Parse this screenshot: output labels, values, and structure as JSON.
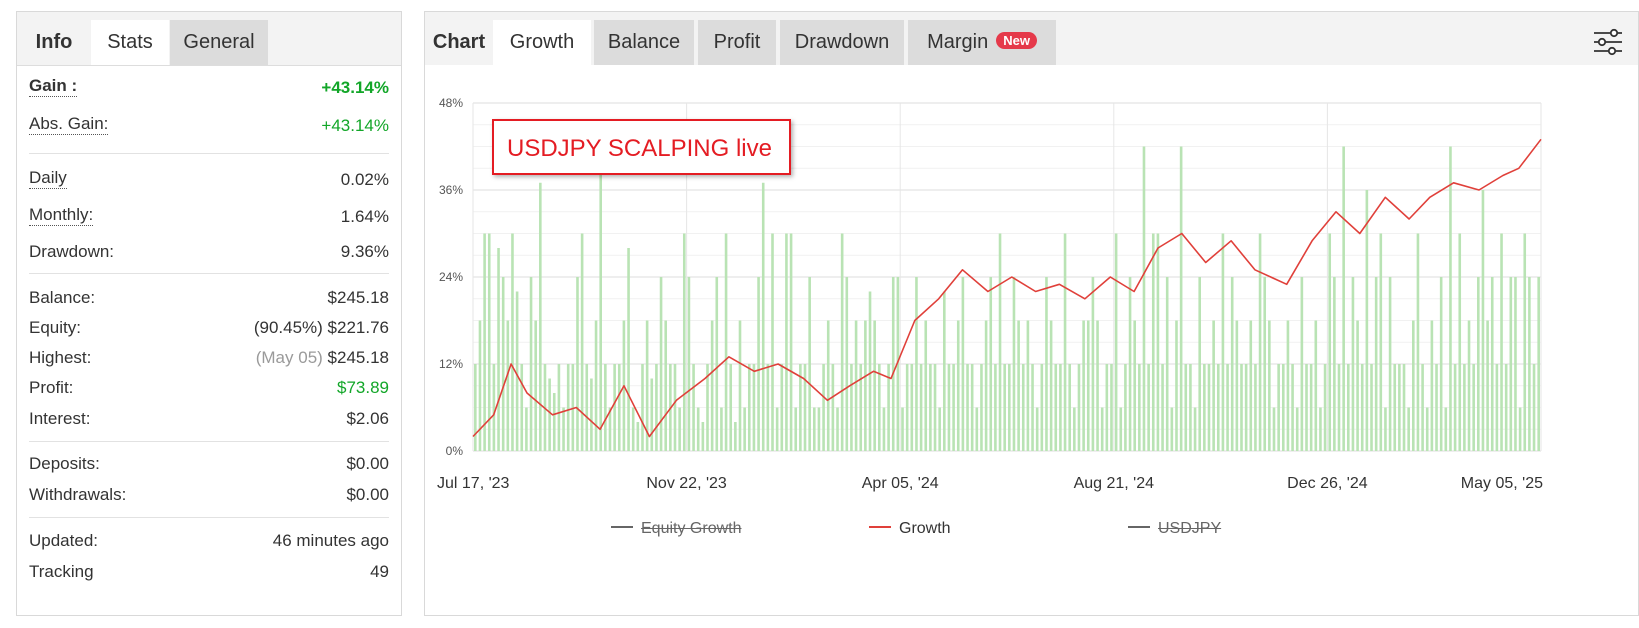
{
  "stats_panel": {
    "tabs": [
      {
        "label": "Info"
      },
      {
        "label": "Stats"
      },
      {
        "label": "General"
      }
    ],
    "rows": [
      {
        "label": "Gain :",
        "value": "+43.14%"
      },
      {
        "label": "Abs. Gain:",
        "value": "+43.14%"
      },
      {
        "label": "Daily",
        "value": "0.02%"
      },
      {
        "label": "Monthly:",
        "value": "1.64%"
      },
      {
        "label": "Drawdown:",
        "value": "9.36%"
      },
      {
        "label": "Balance:",
        "value": "$245.18"
      },
      {
        "label": "Equity:",
        "prefix": "(90.45%)",
        "value": "$221.76"
      },
      {
        "label": "Highest:",
        "prefix": "(May 05)",
        "value": "$245.18"
      },
      {
        "label": "Profit:",
        "value": "$73.89"
      },
      {
        "label": "Interest:",
        "value": "$2.06"
      },
      {
        "label": "Deposits:",
        "value": "$0.00"
      },
      {
        "label": "Withdrawals:",
        "value": "$0.00"
      },
      {
        "label": "Updated:",
        "value": "46 minutes ago"
      },
      {
        "label": "Tracking",
        "value": "49"
      }
    ]
  },
  "chart_panel": {
    "tabs": [
      {
        "label": "Chart"
      },
      {
        "label": "Growth"
      },
      {
        "label": "Balance"
      },
      {
        "label": "Profit"
      },
      {
        "label": "Drawdown"
      },
      {
        "label": "Margin",
        "badge": "New"
      }
    ],
    "settings_icon": "sliders-icon"
  },
  "colors": {
    "growth_line": "#e0403a",
    "bars": "#b9e3b4",
    "positive": "#12a628",
    "annotation": "#e41c23",
    "new_badge": "#e5394a"
  },
  "chart_data": {
    "type": "line",
    "annotation": "USDJPY SCALPING live",
    "x_range": [
      "2023-07-17",
      "2025-05-19"
    ],
    "x_ticks": [
      "Jul 17, '23",
      "Nov 22, '23",
      "Apr 05, '24",
      "Aug 21, '24",
      "Dec 26, '24",
      "May 05, '25"
    ],
    "y_ticks": [
      "0%",
      "12%",
      "24%",
      "36%",
      "48%"
    ],
    "ylim": [
      0,
      48
    ],
    "grid": true,
    "legend": [
      {
        "name": "Equity Growth",
        "hidden": true
      },
      {
        "name": "Growth",
        "hidden": false
      },
      {
        "name": "USDJPY",
        "hidden": true
      }
    ],
    "series": [
      {
        "name": "Growth",
        "x": [
          "2023-07-17",
          "2023-07-30",
          "2023-08-10",
          "2023-08-20",
          "2023-09-05",
          "2023-09-20",
          "2023-10-05",
          "2023-10-20",
          "2023-11-05",
          "2023-11-22",
          "2023-12-10",
          "2023-12-25",
          "2024-01-10",
          "2024-01-25",
          "2024-02-10",
          "2024-02-25",
          "2024-03-10",
          "2024-03-25",
          "2024-04-05",
          "2024-04-20",
          "2024-05-05",
          "2024-05-20",
          "2024-06-05",
          "2024-06-20",
          "2024-07-05",
          "2024-07-20",
          "2024-08-05",
          "2024-08-21",
          "2024-09-05",
          "2024-09-20",
          "2024-10-05",
          "2024-10-20",
          "2024-11-05",
          "2024-11-20",
          "2024-12-10",
          "2024-12-26",
          "2025-01-10",
          "2025-01-25",
          "2025-02-10",
          "2025-02-25",
          "2025-03-10",
          "2025-03-25",
          "2025-04-10",
          "2025-04-25",
          "2025-05-05",
          "2025-05-19"
        ],
        "y": [
          2,
          5,
          12,
          8,
          5,
          6,
          3,
          9,
          2,
          7,
          10,
          13,
          11,
          12,
          10,
          7,
          9,
          11,
          10,
          18,
          21,
          25,
          22,
          24,
          22,
          23,
          21,
          24,
          22,
          28,
          30,
          26,
          29,
          25,
          23,
          29,
          33,
          30,
          35,
          32,
          35,
          37,
          36,
          38,
          39,
          43
        ]
      },
      {
        "name": "Daily gain bars",
        "values": [
          12,
          18,
          30,
          30,
          12,
          28,
          24,
          18,
          30,
          22,
          12,
          6,
          24,
          18,
          37,
          12,
          10,
          8,
          12,
          6,
          12,
          12,
          24,
          30,
          12,
          10,
          18,
          39,
          12,
          6,
          12,
          12,
          18,
          28,
          6,
          4,
          12,
          18,
          10,
          12,
          24,
          18,
          12,
          12,
          6,
          30,
          24,
          12,
          6,
          4,
          12,
          18,
          24,
          6,
          30,
          12,
          4,
          18,
          6,
          12,
          12,
          24,
          37,
          12,
          30,
          6,
          12,
          30,
          30,
          6,
          12,
          12,
          24,
          6,
          6,
          12,
          18,
          12,
          6,
          30,
          24,
          12,
          18,
          12,
          18,
          22,
          18,
          12,
          6,
          12,
          24,
          24,
          6,
          12,
          12,
          24,
          12,
          18,
          12,
          12,
          6,
          22,
          12,
          12,
          18,
          24,
          12,
          12,
          6,
          12,
          18,
          24,
          12,
          30,
          12,
          12,
          24,
          18,
          12,
          18,
          12,
          6,
          12,
          24,
          18,
          12,
          12,
          30,
          12,
          6,
          12,
          18,
          18,
          24,
          18,
          6,
          12,
          12,
          30,
          6,
          12,
          24,
          18,
          12,
          42,
          12,
          30,
          30,
          12,
          24,
          6,
          18,
          42,
          12,
          12,
          6,
          24,
          12,
          12,
          18,
          12,
          30,
          12,
          24,
          18,
          12,
          12,
          18,
          12,
          30,
          24,
          18,
          6,
          12,
          12,
          18,
          12,
          6,
          24,
          12,
          12,
          18,
          6,
          12,
          30,
          24,
          12,
          42,
          12,
          24,
          18,
          12,
          36,
          12,
          24,
          30,
          6,
          24,
          12,
          12,
          12,
          6,
          18,
          30,
          12,
          6,
          18,
          12,
          24,
          6,
          42,
          12,
          30,
          12,
          18,
          12,
          24,
          36,
          18,
          24,
          12,
          30,
          12,
          24,
          24,
          6,
          30,
          24,
          12,
          24
        ]
      }
    ]
  }
}
